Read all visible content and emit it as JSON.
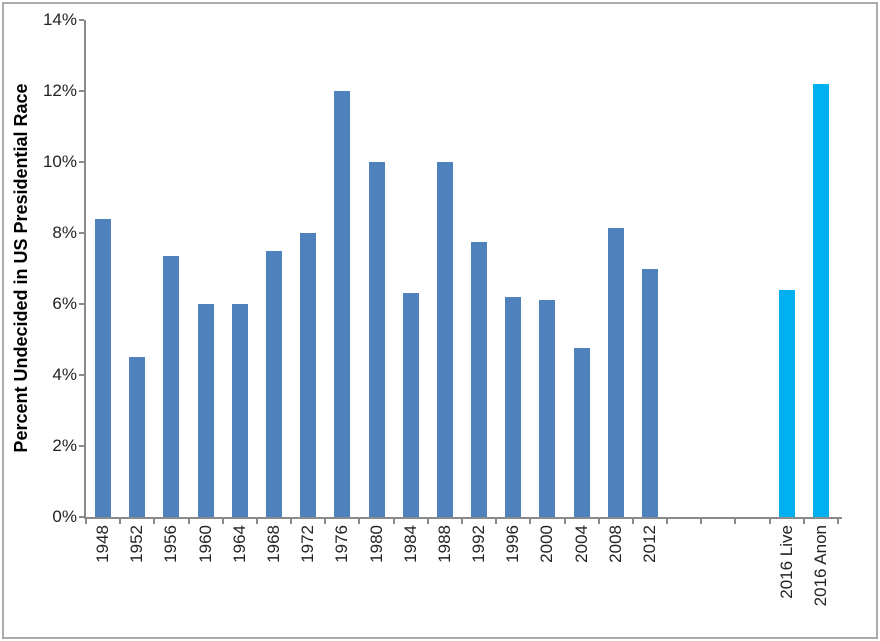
{
  "style": {
    "background": "#ffffff",
    "frame_border_color": "#ababab",
    "axis_color": "#8a8a8a",
    "tick_label_color": "#232323",
    "bar_color_historical": "#4F81BD",
    "bar_color_2016": "#00B0F0"
  },
  "chart_data": {
    "type": "bar",
    "title": "",
    "xlabel": "",
    "ylabel": "Percent Undecided in US Presidential Race",
    "ylim": [
      0,
      14
    ],
    "ytick_step": 2,
    "ytick_labels": [
      "0%",
      "2%",
      "4%",
      "6%",
      "8%",
      "10%",
      "12%",
      "14%"
    ],
    "grid": false,
    "legend": false,
    "categories": [
      "1948",
      "1952",
      "1956",
      "1960",
      "1964",
      "1968",
      "1972",
      "1976",
      "1980",
      "1984",
      "1988",
      "1992",
      "1996",
      "2000",
      "2004",
      "2008",
      "2012",
      "",
      "",
      "",
      "2016 Live",
      "2016 Anon"
    ],
    "values": [
      8.4,
      4.5,
      7.35,
      6.0,
      6.0,
      7.5,
      8.0,
      12.0,
      10.0,
      6.3,
      10.0,
      7.75,
      6.2,
      6.1,
      4.75,
      8.15,
      7.0,
      null,
      null,
      null,
      6.4,
      12.2
    ],
    "bar_colors": [
      "#4F81BD",
      "#4F81BD",
      "#4F81BD",
      "#4F81BD",
      "#4F81BD",
      "#4F81BD",
      "#4F81BD",
      "#4F81BD",
      "#4F81BD",
      "#4F81BD",
      "#4F81BD",
      "#4F81BD",
      "#4F81BD",
      "#4F81BD",
      "#4F81BD",
      "#4F81BD",
      "#4F81BD",
      null,
      null,
      null,
      "#00B0F0",
      "#00B0F0"
    ]
  }
}
